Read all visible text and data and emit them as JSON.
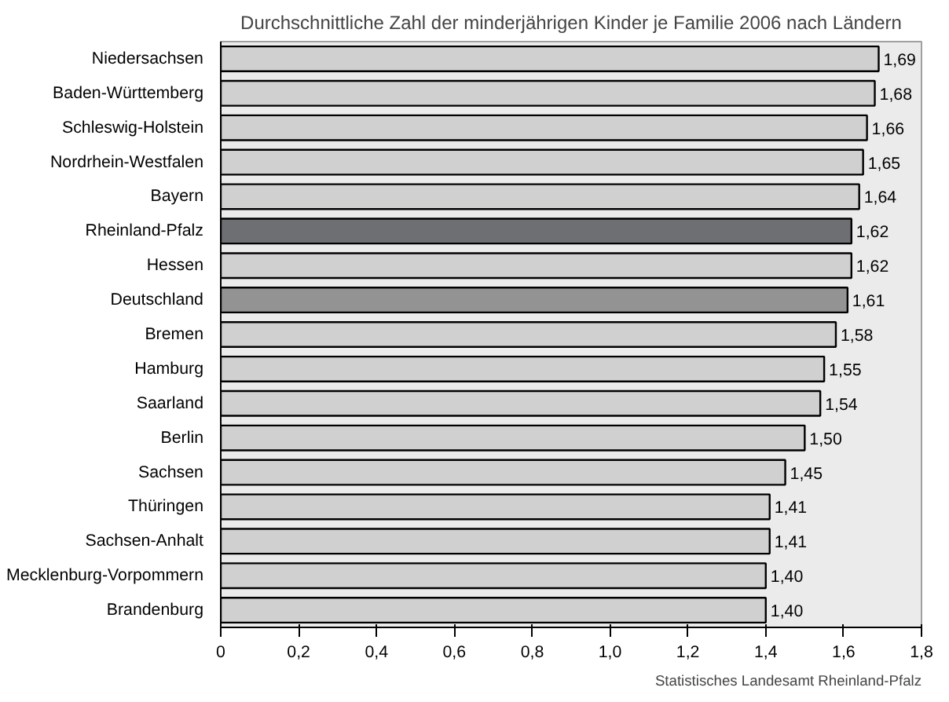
{
  "chart_data": {
    "type": "bar",
    "orientation": "horizontal",
    "title": "Durchschnittliche Zahl der minderjährigen Kinder je Familie 2006 nach Ländern",
    "categories": [
      "Niedersachsen",
      "Baden-Württemberg",
      "Schleswig-Holstein",
      "Nordrhein-Westfalen",
      "Bayern",
      "Rheinland-Pfalz",
      "Hessen",
      "Deutschland",
      "Bremen",
      "Hamburg",
      "Saarland",
      "Berlin",
      "Sachsen",
      "Thüringen",
      "Sachsen-Anhalt",
      "Mecklenburg-Vorpommern",
      "Brandenburg"
    ],
    "values": [
      1.69,
      1.68,
      1.66,
      1.65,
      1.64,
      1.62,
      1.62,
      1.61,
      1.58,
      1.55,
      1.54,
      1.5,
      1.45,
      1.41,
      1.41,
      1.4,
      1.4
    ],
    "colors": [
      "#d0d0d0",
      "#d0d0d0",
      "#d0d0d0",
      "#d0d0d0",
      "#d0d0d0",
      "#6d6f73",
      "#d0d0d0",
      "#939393",
      "#d0d0d0",
      "#d0d0d0",
      "#d0d0d0",
      "#d0d0d0",
      "#d0d0d0",
      "#d0d0d0",
      "#d0d0d0",
      "#d0d0d0",
      "#d0d0d0"
    ],
    "value_labels": [
      "1,69",
      "1,68",
      "1,66",
      "1,65",
      "1,64",
      "1,62",
      "1,62",
      "1,61",
      "1,58",
      "1,55",
      "1,54",
      "1,50",
      "1,45",
      "1,41",
      "1,41",
      "1,40",
      "1,40"
    ],
    "xlim": [
      0,
      1.8
    ],
    "xticks": [
      0,
      {
        "value": 0.2,
        "label": "0,2"
      },
      {
        "value": 0.4,
        "label": "0,4"
      },
      {
        "value": 0.6,
        "label": "0,6"
      },
      {
        "value": 0.8,
        "label": "0,8"
      },
      {
        "value": 1.0,
        "label": "1,0"
      },
      {
        "value": 1.2,
        "label": "1,2"
      },
      {
        "value": 1.4,
        "label": "1,4"
      },
      {
        "value": 1.6,
        "label": "1,6"
      },
      {
        "value": 1.8,
        "label": "1,8"
      }
    ],
    "grid": false,
    "annotations": [
      "Statistisches Landesamt Rheinland-Pfalz"
    ]
  }
}
